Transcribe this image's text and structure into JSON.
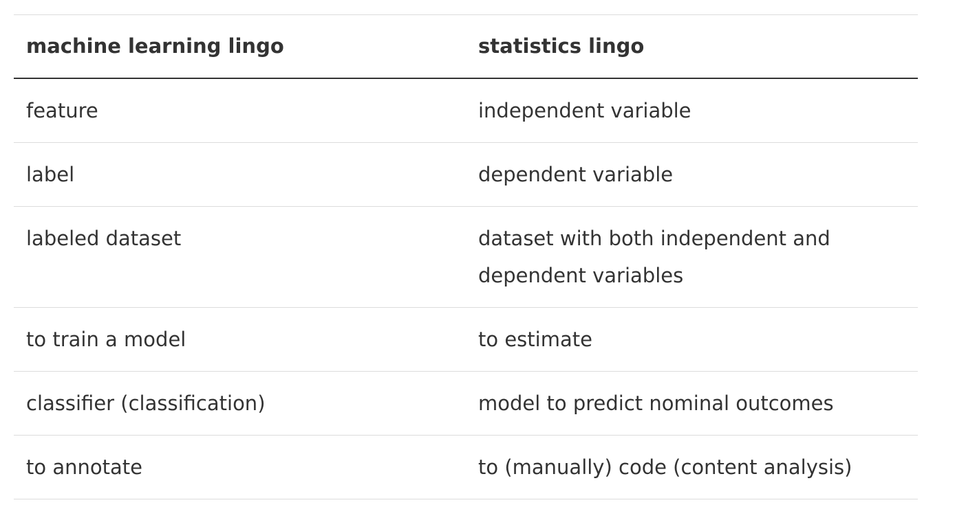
{
  "table": {
    "headers": [
      "machine learning lingo",
      "statistics lingo"
    ],
    "rows": [
      [
        "feature",
        "independent variable"
      ],
      [
        "label",
        "dependent variable"
      ],
      [
        "labeled dataset",
        "dataset with both independent and dependent variables"
      ],
      [
        "to train a model",
        "to estimate"
      ],
      [
        "classifier (classification)",
        "model to predict nominal outcomes"
      ],
      [
        "to annotate",
        "to (manually) code (content analysis)"
      ]
    ]
  },
  "colors": {
    "text": "#333333",
    "header_rule": "#333333",
    "row_rule": "#dcdcdc"
  }
}
